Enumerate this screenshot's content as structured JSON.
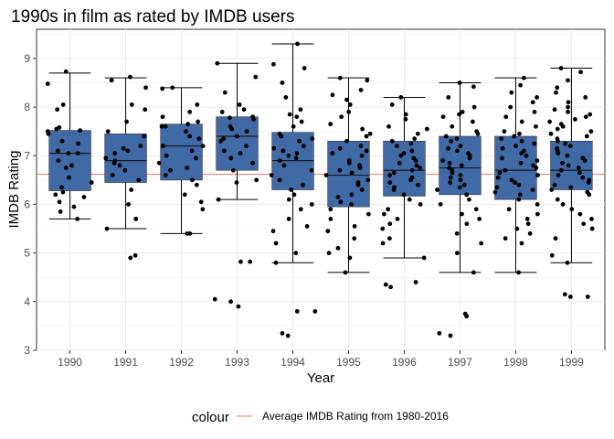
{
  "chart_data": {
    "type": "boxplot",
    "title": "1990s in film as rated by IMDB users",
    "xlabel": "Year",
    "ylabel": "IMDB Rating",
    "ylim": [
      3,
      9.6
    ],
    "yticks": [
      3,
      4,
      5,
      6,
      7,
      8,
      9
    ],
    "categories": [
      "1990",
      "1991",
      "1992",
      "1993",
      "1994",
      "1995",
      "1996",
      "1997",
      "1998",
      "1999"
    ],
    "box_color": "#3f6aa6",
    "point_color": "#000000",
    "grid": true,
    "boxes": [
      {
        "category": "1990",
        "whisker_low": 5.7,
        "q1": 6.28,
        "median": 7.05,
        "q3": 7.52,
        "whisker_high": 8.7
      },
      {
        "category": "1991",
        "whisker_low": 5.5,
        "q1": 6.45,
        "median": 6.9,
        "q3": 7.45,
        "whisker_high": 8.6
      },
      {
        "category": "1992",
        "whisker_low": 5.4,
        "q1": 6.5,
        "median": 7.2,
        "q3": 7.65,
        "whisker_high": 8.4
      },
      {
        "category": "1993",
        "whisker_low": 6.1,
        "q1": 6.7,
        "median": 7.4,
        "q3": 7.8,
        "whisker_high": 8.9
      },
      {
        "category": "1994",
        "whisker_low": 4.8,
        "q1": 6.3,
        "median": 6.9,
        "q3": 7.48,
        "whisker_high": 9.3
      },
      {
        "category": "1995",
        "whisker_low": 4.6,
        "q1": 5.95,
        "median": 6.6,
        "q3": 7.3,
        "whisker_high": 8.6
      },
      {
        "category": "1996",
        "whisker_low": 4.9,
        "q1": 6.17,
        "median": 6.7,
        "q3": 7.3,
        "whisker_high": 8.2
      },
      {
        "category": "1997",
        "whisker_low": 4.6,
        "q1": 6.2,
        "median": 6.75,
        "q3": 7.4,
        "whisker_high": 8.5
      },
      {
        "category": "1998",
        "whisker_low": 4.6,
        "q1": 6.1,
        "median": 6.7,
        "q3": 7.4,
        "whisker_high": 8.6
      },
      {
        "category": "1999",
        "whisker_low": 4.8,
        "q1": 6.3,
        "median": 6.7,
        "q3": 7.3,
        "whisker_high": 8.8
      }
    ],
    "reference_line": {
      "value": 6.62,
      "label": "Average IMDB Rating from 1980-2016",
      "color": "#f8766d"
    },
    "legend": {
      "title": "colour",
      "position": "bottom"
    },
    "points": [
      {
        "category": "1990",
        "values": [
          8.73,
          8.48,
          8.05,
          7.95,
          7.58,
          7.55,
          7.52,
          7.5,
          7.45,
          7.3,
          7.25,
          7.1,
          7.05,
          7.05,
          6.9,
          6.8,
          6.75,
          6.55,
          6.45,
          6.35,
          6.25,
          6.2,
          6.15,
          6.05,
          5.95,
          5.85,
          5.7
        ]
      },
      {
        "category": "1991",
        "values": [
          8.62,
          8.55,
          8.4,
          8.05,
          7.95,
          7.7,
          7.5,
          7.4,
          7.2,
          7.15,
          7.1,
          7.05,
          6.95,
          6.9,
          6.85,
          6.8,
          6.7,
          6.6,
          6.5,
          6.3,
          6.0,
          5.7,
          5.5,
          4.95,
          4.9
        ]
      },
      {
        "category": "1992",
        "values": [
          8.4,
          8.38,
          8.05,
          7.9,
          7.8,
          7.7,
          7.65,
          7.6,
          7.6,
          7.5,
          7.4,
          7.35,
          7.2,
          7.2,
          7.1,
          7.0,
          6.95,
          6.85,
          6.75,
          6.7,
          6.6,
          6.5,
          6.4,
          6.2,
          6.05,
          5.9,
          5.4,
          5.4
        ]
      },
      {
        "category": "1993",
        "values": [
          8.9,
          8.62,
          8.3,
          8.05,
          7.95,
          7.9,
          7.8,
          7.78,
          7.75,
          7.6,
          7.55,
          7.5,
          7.4,
          7.35,
          7.3,
          7.2,
          7.1,
          7.05,
          6.95,
          6.85,
          6.7,
          6.5,
          6.45,
          6.1,
          4.82,
          4.82,
          4.05,
          4.0,
          3.9
        ]
      },
      {
        "category": "1994",
        "values": [
          9.3,
          8.88,
          8.8,
          8.5,
          8.2,
          7.95,
          7.85,
          7.8,
          7.7,
          7.6,
          7.45,
          7.4,
          7.35,
          7.3,
          7.2,
          7.15,
          7.1,
          7.05,
          7.0,
          6.95,
          6.9,
          6.8,
          6.7,
          6.6,
          6.5,
          6.4,
          6.3,
          6.2,
          6.1,
          6.0,
          5.9,
          5.7,
          5.55,
          5.45,
          5.2,
          5.0,
          4.8,
          3.8,
          3.8,
          3.35,
          3.3
        ]
      },
      {
        "category": "1995",
        "values": [
          8.6,
          8.55,
          8.35,
          8.25,
          8.15,
          8.05,
          7.9,
          7.8,
          7.65,
          7.55,
          7.45,
          7.4,
          7.3,
          7.2,
          7.15,
          7.1,
          7.05,
          7.0,
          6.9,
          6.85,
          6.8,
          6.75,
          6.7,
          6.65,
          6.6,
          6.5,
          6.45,
          6.4,
          6.3,
          6.2,
          6.15,
          6.05,
          6.0,
          5.9,
          5.8,
          5.7,
          5.55,
          5.45,
          5.3,
          5.1,
          5.0,
          4.9,
          4.6
        ]
      },
      {
        "category": "1996",
        "values": [
          8.2,
          8.05,
          7.85,
          7.75,
          7.6,
          7.55,
          7.45,
          7.35,
          7.3,
          7.25,
          7.2,
          7.1,
          7.05,
          7.0,
          6.95,
          6.9,
          6.85,
          6.8,
          6.75,
          6.7,
          6.65,
          6.6,
          6.55,
          6.5,
          6.45,
          6.4,
          6.35,
          6.3,
          6.2,
          6.1,
          6.0,
          5.9,
          5.8,
          5.7,
          5.6,
          5.5,
          5.3,
          5.2,
          4.9,
          4.4,
          4.35,
          4.3
        ]
      },
      {
        "category": "1997",
        "values": [
          8.5,
          8.42,
          8.2,
          8.0,
          7.9,
          7.85,
          7.8,
          7.7,
          7.6,
          7.5,
          7.45,
          7.4,
          7.35,
          7.3,
          7.2,
          7.15,
          7.1,
          7.05,
          7.0,
          6.95,
          6.9,
          6.85,
          6.8,
          6.75,
          6.7,
          6.65,
          6.6,
          6.55,
          6.5,
          6.45,
          6.4,
          6.35,
          6.3,
          6.2,
          6.1,
          6.0,
          5.9,
          5.8,
          5.7,
          5.6,
          5.4,
          5.2,
          5.0,
          4.6,
          3.75,
          3.7,
          3.35,
          3.3
        ]
      },
      {
        "category": "1998",
        "values": [
          8.6,
          8.45,
          8.3,
          8.2,
          8.1,
          8.0,
          7.9,
          7.8,
          7.7,
          7.6,
          7.5,
          7.45,
          7.4,
          7.35,
          7.3,
          7.25,
          7.2,
          7.15,
          7.1,
          7.05,
          7.0,
          6.95,
          6.9,
          6.85,
          6.8,
          6.75,
          6.7,
          6.65,
          6.6,
          6.55,
          6.5,
          6.45,
          6.4,
          6.35,
          6.3,
          6.25,
          6.2,
          6.1,
          6.0,
          5.9,
          5.8,
          5.7,
          5.6,
          5.5,
          5.4,
          5.3,
          5.2,
          4.6
        ]
      },
      {
        "category": "1999",
        "values": [
          8.8,
          8.72,
          8.55,
          8.4,
          8.3,
          8.2,
          8.1,
          8.0,
          7.95,
          7.9,
          7.85,
          7.8,
          7.75,
          7.7,
          7.65,
          7.6,
          7.55,
          7.5,
          7.45,
          7.4,
          7.35,
          7.3,
          7.25,
          7.2,
          7.15,
          7.1,
          7.05,
          7.0,
          6.95,
          6.9,
          6.85,
          6.8,
          6.75,
          6.7,
          6.65,
          6.6,
          6.55,
          6.5,
          6.45,
          6.4,
          6.35,
          6.3,
          6.25,
          6.2,
          6.1,
          6.0,
          5.9,
          5.8,
          5.7,
          5.6,
          5.5,
          5.3,
          4.95,
          4.8,
          4.15,
          4.1,
          4.1
        ]
      }
    ]
  }
}
